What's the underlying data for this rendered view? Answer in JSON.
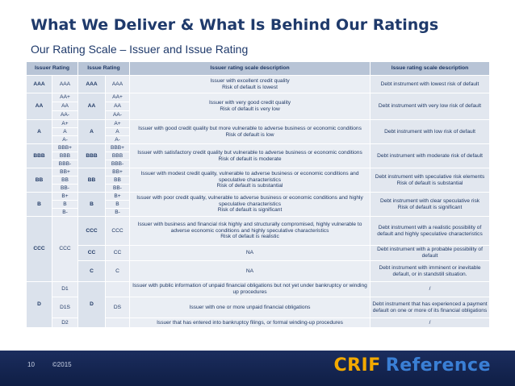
{
  "header": {
    "title": "What We Deliver & What Is Behind Our Ratings",
    "subtitle": "Our Rating Scale – Issuer and Issue Rating"
  },
  "table": {
    "headers": [
      "Issuer Rating",
      "Issue Rating",
      "Issuer rating scale description",
      "Issue rating scale description"
    ],
    "groups": [
      {
        "issuer": "AAA",
        "issue": "AAA",
        "subs": [
          {
            "issuer_sub": "AAA",
            "issue_sub": "AAA"
          }
        ],
        "issuer_desc": "Issuer with excellent credit quality\nRisk of default is lowest",
        "issue_desc": "Debt instrument with lowest risk of default"
      },
      {
        "issuer": "AA",
        "issue": "AA",
        "subs": [
          {
            "issuer_sub": "AA+",
            "issue_sub": "AA+"
          },
          {
            "issuer_sub": "AA",
            "issue_sub": "AA"
          },
          {
            "issuer_sub": "AA-",
            "issue_sub": "AA-"
          }
        ],
        "issuer_desc": "Issuer with very good credit quality\nRisk of default is very low",
        "issue_desc": "Debt instrument  with very low risk of default"
      },
      {
        "issuer": "A",
        "issue": "A",
        "subs": [
          {
            "issuer_sub": "A+",
            "issue_sub": "A+"
          },
          {
            "issuer_sub": "A",
            "issue_sub": "A"
          },
          {
            "issuer_sub": "A-",
            "issue_sub": "A-"
          }
        ],
        "issuer_desc": "Issuer with good credit quality but more vulnerable to adverse business or economic conditions\nRisk of default is low",
        "issue_desc": "Debt instrument with low risk of default"
      },
      {
        "issuer": "BBB",
        "issue": "BBB",
        "subs": [
          {
            "issuer_sub": "BBB+",
            "issue_sub": "BBB+"
          },
          {
            "issuer_sub": "BBB",
            "issue_sub": "BBB"
          },
          {
            "issuer_sub": "BBB-",
            "issue_sub": "BBB-"
          }
        ],
        "issuer_desc": "Issuer with satisfactory credit quality but vulnerable to adverse business or economic conditions\nRisk of default is moderate",
        "issue_desc": "Debt instrument with moderate risk of default"
      },
      {
        "issuer": "BB",
        "issue": "BB",
        "subs": [
          {
            "issuer_sub": "BB+",
            "issue_sub": "BB+"
          },
          {
            "issuer_sub": "BB",
            "issue_sub": "BB"
          },
          {
            "issuer_sub": "BB-",
            "issue_sub": "BB-"
          }
        ],
        "issuer_desc": "Issuer with modest credit quality, vulnerable to adverse business or economic conditions and speculative characteristics\nRisk of default is substantial",
        "issue_desc": "Debt instrument with speculative risk elements Risk of default is substantial"
      },
      {
        "issuer": "B",
        "issue": "B",
        "subs": [
          {
            "issuer_sub": "B+",
            "issue_sub": "B+"
          },
          {
            "issuer_sub": "B",
            "issue_sub": "B"
          },
          {
            "issuer_sub": "B-",
            "issue_sub": "B-"
          }
        ],
        "issuer_desc": "Issuer with poor credit quality, vulnerable to adverse business or economic conditions and highly speculative characteristics\nRisk of default is significant",
        "issue_desc": "Debt instrument with clear speculative risk\nRisk of default is significant"
      }
    ],
    "ccc": {
      "issuer": "CCC",
      "issuer_sub": "CCC",
      "rows": [
        {
          "issue": "CCC",
          "issue_sub": "CCC",
          "issuer_desc": "Issuer with business and financial risk highly and structurally compromised, highly vulnerable to adverse economic conditions and highly speculative characteristics\nRisk of default is realistic",
          "issue_desc": "Debt instrument with a realistic possibility of default and highly speculative characteristics"
        },
        {
          "issue": "CC",
          "issue_sub": "CC",
          "issuer_desc": "NA",
          "issue_desc": "Debt instrument with a probable possibility of default"
        },
        {
          "issue": "C",
          "issue_sub": "C",
          "issuer_desc": "NA",
          "issue_desc": "Debt instrument with imminent or inevitable default, or in standstill situation."
        }
      ]
    },
    "d": {
      "issuer": "D",
      "issue": "D",
      "rows": [
        {
          "issuer_sub": "D1",
          "issuer_desc": "Issuer with public information of unpaid financial obligations but not yet under bankruptcy or winding up procedures",
          "issue_desc": "/"
        },
        {
          "issuer_sub": "D1S",
          "issue_sub": "DS",
          "issuer_desc": "Issuer with one or more unpaid financial obligations",
          "issue_desc": "Debt instrument that has experienced a payment default on one or more of its financial obligations"
        },
        {
          "issuer_sub": "D2",
          "issuer_desc": "Issuer that has entered into bankruptcy filings, or formal winding-up procedures",
          "issue_desc": "/"
        }
      ]
    }
  },
  "footer": {
    "page": "10",
    "copyright": "©2015",
    "logo_part1": "CRIF",
    "logo_part2": "Reference"
  },
  "colors": {
    "title": "#1f3a6b",
    "header_bg": "#b8c4d6",
    "row_bg": "#e4e9f1",
    "footer_bg": "#1b2d5e",
    "logo_orange": "#f2a900",
    "logo_blue": "#3a7fd5"
  }
}
